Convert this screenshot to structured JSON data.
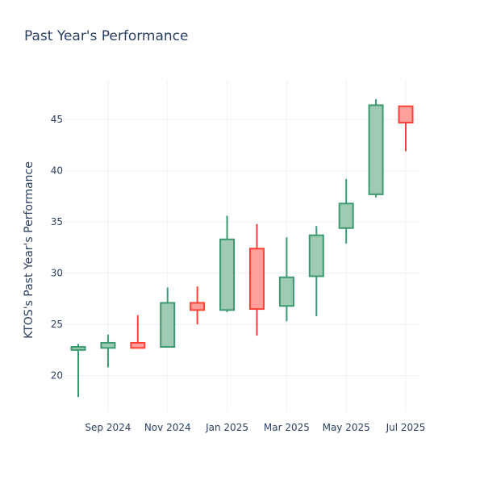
{
  "chart_data": {
    "type": "candlestick",
    "title": "Past Year's Performance",
    "xlabel": "",
    "ylabel": "KTOS's Past Year's Performance",
    "ylim": [
      16.5,
      48.8
    ],
    "x_tick_labels": [
      "Sep 2024",
      "Nov 2024",
      "Jan 2025",
      "Mar 2025",
      "May 2025",
      "Jul 2025"
    ],
    "y_tick_values": [
      20,
      25,
      30,
      35,
      40,
      45
    ],
    "grid": true,
    "colors": {
      "increasing_line": "#3d9970",
      "increasing_fill": "#9fcbb3",
      "decreasing_line": "#ff4136",
      "decreasing_fill": "#ff9f9b",
      "text": "#2a3f5f",
      "grid": "#edf1f5"
    },
    "candles": [
      {
        "period": "Aug 2024",
        "open": 22.5,
        "high": 23.1,
        "low": 17.9,
        "close": 22.8
      },
      {
        "period": "Sep 2024",
        "open": 22.7,
        "high": 24.0,
        "low": 20.8,
        "close": 23.2
      },
      {
        "period": "Oct 2024",
        "open": 23.2,
        "high": 25.9,
        "low": 22.8,
        "close": 22.7
      },
      {
        "period": "Nov 2024",
        "open": 22.8,
        "high": 28.6,
        "low": 22.8,
        "close": 27.1
      },
      {
        "period": "Dec 2024",
        "open": 27.1,
        "high": 28.7,
        "low": 25.0,
        "close": 26.4
      },
      {
        "period": "Jan 2025",
        "open": 26.4,
        "high": 35.6,
        "low": 26.2,
        "close": 33.3
      },
      {
        "period": "Feb 2025",
        "open": 32.4,
        "high": 34.8,
        "low": 23.9,
        "close": 26.5
      },
      {
        "period": "Mar 2025",
        "open": 26.8,
        "high": 33.5,
        "low": 25.3,
        "close": 29.6
      },
      {
        "period": "Apr 2025",
        "open": 29.7,
        "high": 34.6,
        "low": 25.8,
        "close": 33.7
      },
      {
        "period": "May 2025",
        "open": 34.4,
        "high": 39.2,
        "low": 32.9,
        "close": 36.8
      },
      {
        "period": "Jun 2025",
        "open": 37.7,
        "high": 47.0,
        "low": 37.4,
        "close": 46.4
      },
      {
        "period": "Jul 2025",
        "open": 46.3,
        "high": 46.3,
        "low": 41.9,
        "close": 44.7
      }
    ]
  }
}
